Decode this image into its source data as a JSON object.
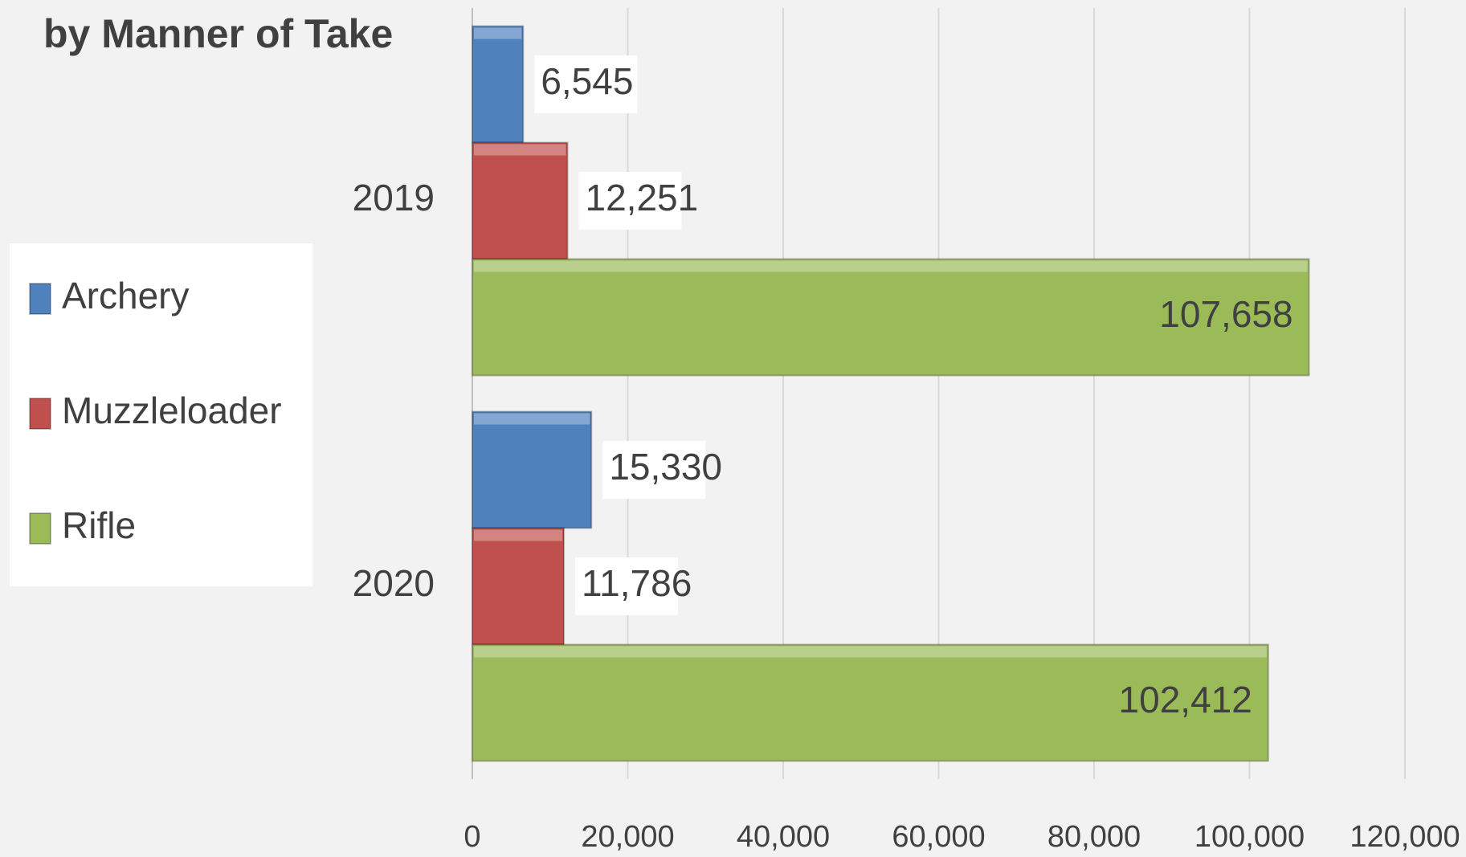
{
  "chart_data": {
    "type": "bar",
    "orientation": "horizontal",
    "title": "by Manner of Take",
    "categories": [
      "2019",
      "2020"
    ],
    "series": [
      {
        "name": "Archery",
        "color": "#4f81bd",
        "values": [
          6545,
          15330
        ],
        "value_labels": [
          "6,545",
          "15,330"
        ]
      },
      {
        "name": "Muzzleloader",
        "color": "#c0504d",
        "values": [
          12251,
          11786
        ],
        "value_labels": [
          "12,251",
          "11,786"
        ]
      },
      {
        "name": "Rifle",
        "color": "#9bbb59",
        "values": [
          107658,
          102412
        ],
        "value_labels": [
          "107,658",
          "102,412"
        ]
      }
    ],
    "xlim": [
      0,
      120000
    ],
    "xticks": [
      0,
      {
        "value": 20000,
        "label": "20,000"
      },
      {
        "value": 40000,
        "label": "40,000"
      },
      {
        "value": 60000,
        "label": "60,000"
      },
      {
        "value": 80000,
        "label": "80,000"
      },
      {
        "value": 100000,
        "label": "100,000"
      },
      {
        "value": 120000,
        "label": "120,000"
      }
    ],
    "grid": true,
    "legend": "left"
  }
}
